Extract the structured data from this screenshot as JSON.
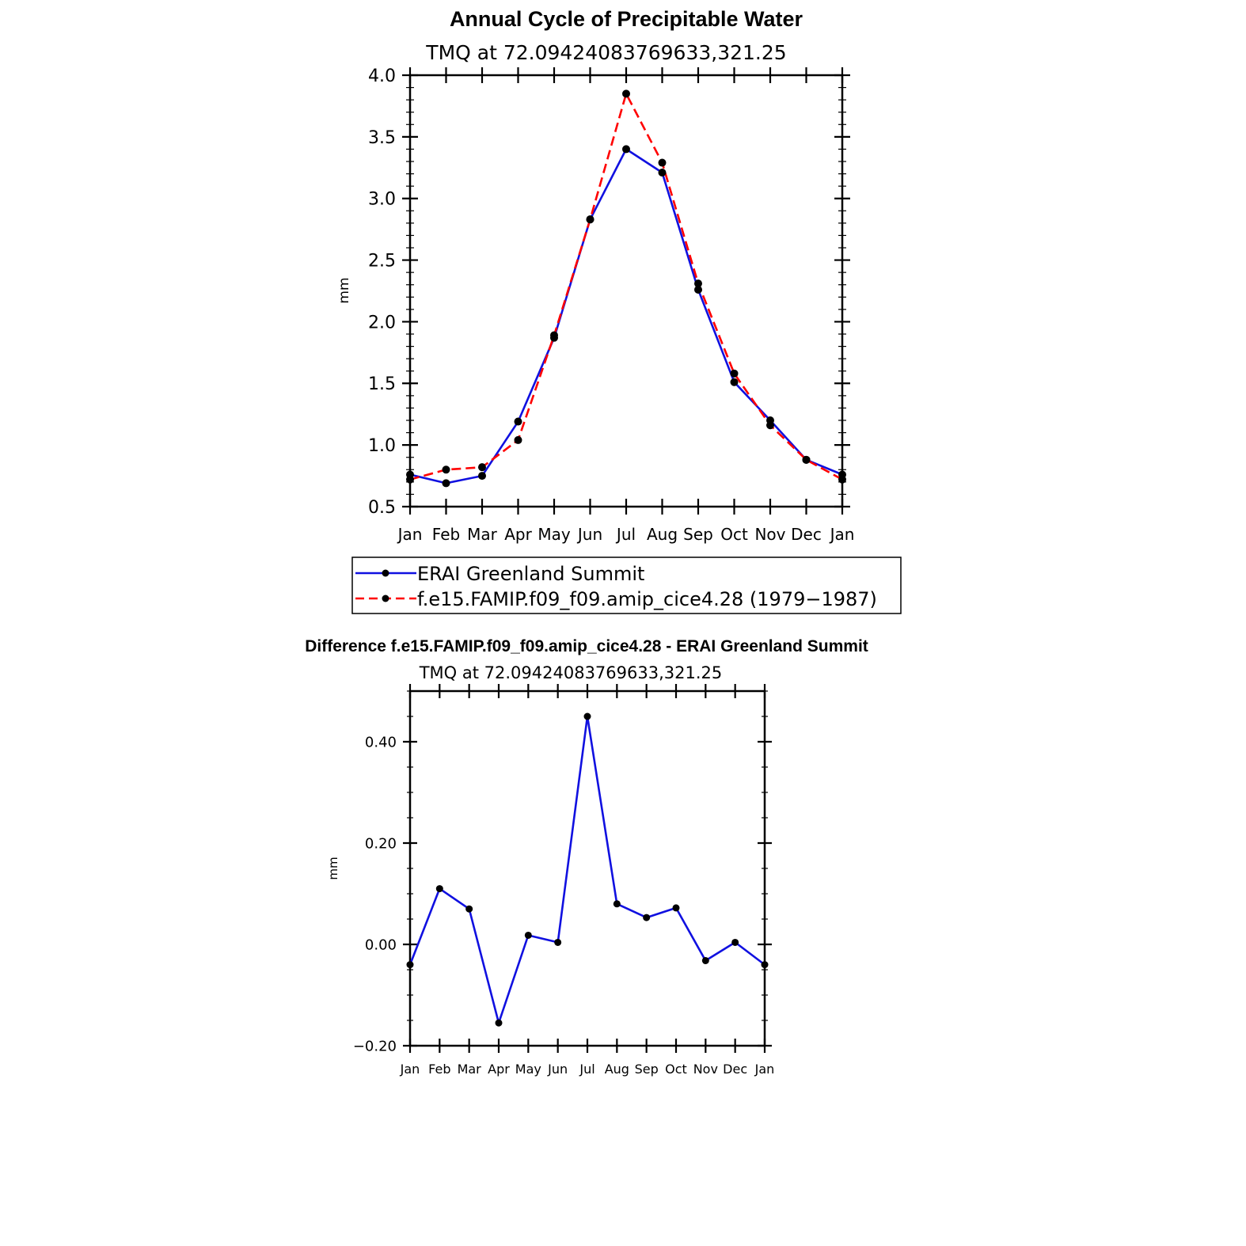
{
  "chart_data": [
    {
      "type": "line",
      "title": "Annual Cycle of Precipitable Water",
      "subtitle": "TMQ at 72.09424083769633,321.25",
      "ylabel": "mm",
      "xlabel": "",
      "categories": [
        "Jan",
        "Feb",
        "Mar",
        "Apr",
        "May",
        "Jun",
        "Jul",
        "Aug",
        "Sep",
        "Oct",
        "Nov",
        "Dec",
        "Jan"
      ],
      "ylim": [
        0.5,
        4.0
      ],
      "yticks": [
        "0.5",
        "1.0",
        "1.5",
        "2.0",
        "2.5",
        "3.0",
        "3.5",
        "4.0"
      ],
      "ytick_values": [
        0.5,
        1.0,
        1.5,
        2.0,
        2.5,
        3.0,
        3.5,
        4.0
      ],
      "minor_step": 0.1,
      "legend_position": "bottom",
      "series": [
        {
          "name": "ERAI Greenland Summit",
          "color": "#1010e0",
          "dash": "solid",
          "values": [
            0.76,
            0.69,
            0.75,
            1.19,
            1.87,
            2.83,
            3.4,
            3.21,
            2.26,
            1.51,
            1.2,
            0.88,
            0.76
          ]
        },
        {
          "name": "f.e15.FAMIP.f09_f09.amip_cice4.28 (1979−1987)",
          "color": "#ff0000",
          "dash": "dashed",
          "values": [
            0.72,
            0.8,
            0.82,
            1.04,
            1.89,
            2.83,
            3.85,
            3.29,
            2.31,
            1.58,
            1.16,
            0.88,
            0.72
          ]
        }
      ]
    },
    {
      "type": "line",
      "title": "Difference f.e15.FAMIP.f09_f09.amip_cice4.28 - ERAI Greenland Summit",
      "subtitle": "TMQ at 72.09424083769633,321.25",
      "ylabel": "mm",
      "xlabel": "",
      "categories": [
        "Jan",
        "Feb",
        "Mar",
        "Apr",
        "May",
        "Jun",
        "Jul",
        "Aug",
        "Sep",
        "Oct",
        "Nov",
        "Dec",
        "Jan"
      ],
      "ylim": [
        -0.2,
        0.5
      ],
      "yticks": [
        "−0.20",
        "0.00",
        "0.20",
        "0.40"
      ],
      "ytick_values": [
        -0.2,
        0.0,
        0.2,
        0.4
      ],
      "minor_step": 0.05,
      "series": [
        {
          "color": "#1010e0",
          "dash": "solid",
          "values": [
            -0.04,
            0.11,
            0.07,
            -0.155,
            0.018,
            0.004,
            0.45,
            0.08,
            0.053,
            0.072,
            -0.032,
            0.004,
            -0.04
          ]
        }
      ]
    }
  ]
}
